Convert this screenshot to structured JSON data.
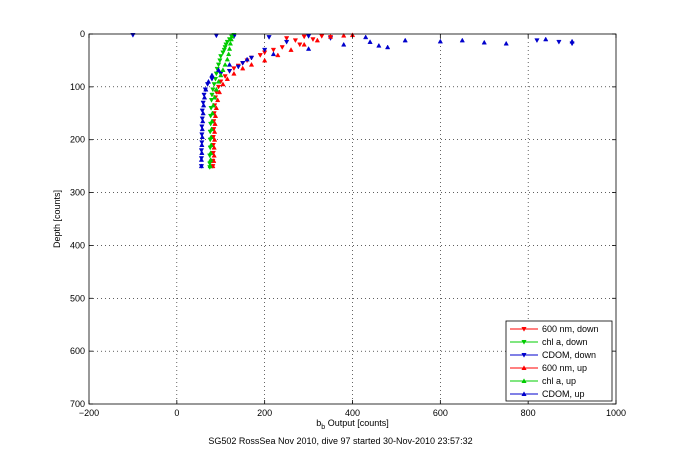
{
  "caption": "SG502 RossSea Nov 2010, dive 97 started 30-Nov-2010 23:57:32",
  "chart_data": {
    "type": "scatter",
    "title": "",
    "xlabel_main": "b",
    "xlabel_sub": "b",
    "xlabel_rest": " Output [counts]",
    "ylabel": "Depth [counts]",
    "xlim": [
      -200,
      1000
    ],
    "ylim": [
      0,
      700
    ],
    "y_reversed": true,
    "grid": true,
    "grid_style": "dotted",
    "x_ticks": [
      -200,
      0,
      200,
      400,
      600,
      800,
      1000
    ],
    "y_ticks": [
      0,
      100,
      200,
      300,
      400,
      500,
      600,
      700
    ],
    "legend_position": "bottom-right",
    "series": [
      {
        "name": "600 nm, down",
        "color": "#ff0000",
        "marker": "triangle-down",
        "points": [
          [
            250,
            8
          ],
          [
            270,
            12
          ],
          [
            290,
            5
          ],
          [
            310,
            10
          ],
          [
            330,
            4
          ],
          [
            350,
            6
          ],
          [
            280,
            20
          ],
          [
            240,
            25
          ],
          [
            220,
            30
          ],
          [
            200,
            35
          ],
          [
            190,
            40
          ],
          [
            170,
            45
          ],
          [
            160,
            50
          ],
          [
            150,
            55
          ],
          [
            140,
            60
          ],
          [
            130,
            65
          ],
          [
            120,
            70
          ],
          [
            110,
            80
          ],
          [
            100,
            90
          ],
          [
            95,
            100
          ],
          [
            90,
            110
          ],
          [
            88,
            120
          ],
          [
            86,
            135
          ],
          [
            85,
            150
          ],
          [
            84,
            165
          ],
          [
            84,
            180
          ],
          [
            83,
            195
          ],
          [
            83,
            210
          ],
          [
            83,
            225
          ],
          [
            82,
            240
          ],
          [
            82,
            250
          ]
        ]
      },
      {
        "name": "chl a, down",
        "color": "#00cc00",
        "marker": "triangle-down",
        "points": [
          [
            130,
            2
          ],
          [
            125,
            5
          ],
          [
            120,
            10
          ],
          [
            115,
            15
          ],
          [
            112,
            20
          ],
          [
            110,
            25
          ],
          [
            108,
            30
          ],
          [
            105,
            35
          ],
          [
            100,
            42
          ],
          [
            98,
            50
          ],
          [
            95,
            58
          ],
          [
            92,
            66
          ],
          [
            90,
            75
          ],
          [
            88,
            85
          ],
          [
            85,
            95
          ],
          [
            82,
            105
          ],
          [
            80,
            115
          ],
          [
            79,
            125
          ],
          [
            78,
            140
          ],
          [
            77,
            155
          ],
          [
            77,
            170
          ],
          [
            76,
            185
          ],
          [
            76,
            200
          ],
          [
            76,
            215
          ],
          [
            75,
            230
          ],
          [
            75,
            245
          ],
          [
            75,
            252
          ]
        ]
      },
      {
        "name": "CDOM, down",
        "color": "#0000cc",
        "marker": "triangle-down",
        "points": [
          [
            -100,
            2
          ],
          [
            90,
            3
          ],
          [
            130,
            5
          ],
          [
            210,
            6
          ],
          [
            300,
            4
          ],
          [
            350,
            8
          ],
          [
            820,
            12
          ],
          [
            870,
            15
          ],
          [
            900,
            18
          ],
          [
            250,
            15
          ],
          [
            200,
            30
          ],
          [
            170,
            45
          ],
          [
            150,
            55
          ],
          [
            140,
            62
          ],
          [
            120,
            70
          ],
          [
            100,
            75
          ],
          [
            80,
            85
          ],
          [
            70,
            95
          ],
          [
            65,
            105
          ],
          [
            62,
            115
          ],
          [
            60,
            130
          ],
          [
            58,
            145
          ],
          [
            58,
            160
          ],
          [
            57,
            175
          ],
          [
            57,
            190
          ],
          [
            57,
            205
          ],
          [
            56,
            220
          ],
          [
            56,
            235
          ],
          [
            56,
            250
          ]
        ]
      },
      {
        "name": "600 nm, up",
        "color": "#ff0000",
        "marker": "triangle-up",
        "points": [
          [
            82,
            250
          ],
          [
            84,
            240
          ],
          [
            85,
            230
          ],
          [
            85,
            215
          ],
          [
            86,
            200
          ],
          [
            86,
            185
          ],
          [
            87,
            170
          ],
          [
            88,
            155
          ],
          [
            90,
            140
          ],
          [
            93,
            125
          ],
          [
            97,
            110
          ],
          [
            105,
            95
          ],
          [
            115,
            85
          ],
          [
            130,
            75
          ],
          [
            150,
            65
          ],
          [
            170,
            58
          ],
          [
            200,
            50
          ],
          [
            230,
            40
          ],
          [
            260,
            30
          ],
          [
            290,
            20
          ],
          [
            320,
            12
          ],
          [
            350,
            5
          ],
          [
            380,
            3
          ],
          [
            400,
            2
          ]
        ]
      },
      {
        "name": "chl a, up",
        "color": "#00cc00",
        "marker": "triangle-up",
        "points": [
          [
            76,
            250
          ],
          [
            77,
            238
          ],
          [
            77,
            225
          ],
          [
            78,
            210
          ],
          [
            78,
            195
          ],
          [
            79,
            180
          ],
          [
            80,
            165
          ],
          [
            81,
            150
          ],
          [
            83,
            135
          ],
          [
            86,
            120
          ],
          [
            90,
            105
          ],
          [
            95,
            90
          ],
          [
            100,
            78
          ],
          [
            105,
            68
          ],
          [
            110,
            58
          ],
          [
            115,
            48
          ],
          [
            118,
            38
          ],
          [
            120,
            28
          ],
          [
            122,
            18
          ],
          [
            124,
            10
          ],
          [
            126,
            4
          ]
        ]
      },
      {
        "name": "CDOM, up",
        "color": "#0000cc",
        "marker": "triangle-up",
        "points": [
          [
            56,
            250
          ],
          [
            56,
            238
          ],
          [
            57,
            225
          ],
          [
            57,
            210
          ],
          [
            58,
            195
          ],
          [
            58,
            180
          ],
          [
            59,
            165
          ],
          [
            60,
            150
          ],
          [
            61,
            135
          ],
          [
            63,
            120
          ],
          [
            66,
            105
          ],
          [
            72,
            90
          ],
          [
            80,
            78
          ],
          [
            95,
            68
          ],
          [
            120,
            58
          ],
          [
            160,
            48
          ],
          [
            220,
            38
          ],
          [
            300,
            28
          ],
          [
            380,
            20
          ],
          [
            440,
            15
          ],
          [
            520,
            12
          ],
          [
            600,
            14
          ],
          [
            650,
            12
          ],
          [
            700,
            16
          ],
          [
            750,
            18
          ],
          [
            840,
            10
          ],
          [
            900,
            14
          ],
          [
            430,
            6
          ],
          [
            480,
            25
          ],
          [
            460,
            22
          ]
        ]
      }
    ]
  }
}
